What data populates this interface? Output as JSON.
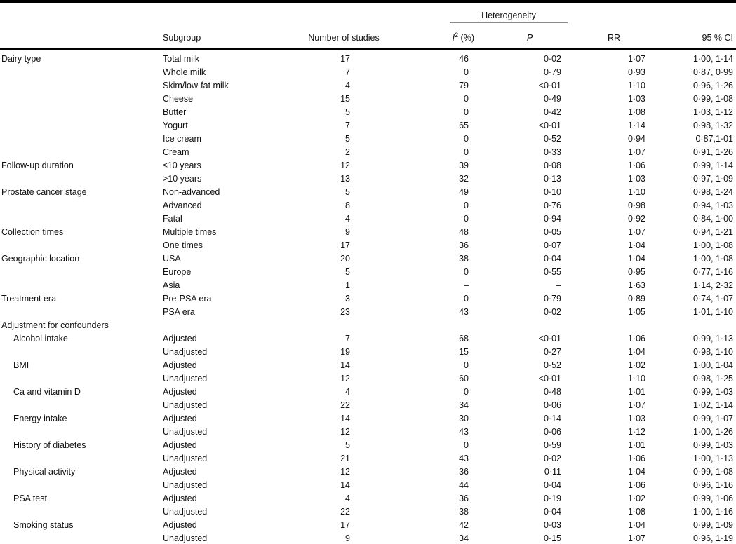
{
  "table": {
    "header": {
      "heterogeneity": "Heterogeneity",
      "col_subgroup": "Subgroup",
      "col_n": "Number of studies",
      "col_i2_base": "I",
      "col_i2_sup": "2",
      "col_i2_rest": " (%)",
      "col_p": "P",
      "col_rr": "RR",
      "col_ci": "95 % CI"
    },
    "rows": [
      {
        "category": "Dairy type",
        "indent": false,
        "subgroup": "Total milk",
        "n": "17",
        "i2": "46",
        "p": "0·02",
        "rr": "1·07",
        "ci": "1·00, 1·14"
      },
      {
        "category": "",
        "indent": false,
        "subgroup": "Whole milk",
        "n": "7",
        "i2": "0",
        "p": "0·79",
        "rr": "0·93",
        "ci": "0·87, 0·99"
      },
      {
        "category": "",
        "indent": false,
        "subgroup": "Skim/low-fat milk",
        "n": "4",
        "i2": "79",
        "p": "<0·01",
        "rr": "1·10",
        "ci": "0·96, 1·26"
      },
      {
        "category": "",
        "indent": false,
        "subgroup": "Cheese",
        "n": "15",
        "i2": "0",
        "p": "0·49",
        "rr": "1·03",
        "ci": "0·99, 1·08"
      },
      {
        "category": "",
        "indent": false,
        "subgroup": "Butter",
        "n": "5",
        "i2": "0",
        "p": "0·42",
        "rr": "1·08",
        "ci": "1·03, 1·12"
      },
      {
        "category": "",
        "indent": false,
        "subgroup": "Yogurt",
        "n": "7",
        "i2": "65",
        "p": "<0·01",
        "rr": "1·14",
        "ci": "0·98, 1·32"
      },
      {
        "category": "",
        "indent": false,
        "subgroup": "Ice cream",
        "n": "5",
        "i2": "0",
        "p": "0·52",
        "rr": "0·94",
        "ci": "0·87,1·01"
      },
      {
        "category": "",
        "indent": false,
        "subgroup": "Cream",
        "n": "2",
        "i2": "0",
        "p": "0·33",
        "rr": "1·07",
        "ci": "0·91, 1·26"
      },
      {
        "category": "Follow-up duration",
        "indent": false,
        "subgroup": "≤10 years",
        "n": "12",
        "i2": "39",
        "p": "0·08",
        "rr": "1·06",
        "ci": "0·99, 1·14"
      },
      {
        "category": "",
        "indent": false,
        "subgroup": ">10 years",
        "n": "13",
        "i2": "32",
        "p": "0·13",
        "rr": "1·03",
        "ci": "0·97, 1·09"
      },
      {
        "category": "Prostate cancer stage",
        "indent": false,
        "subgroup": "Non-advanced",
        "n": "5",
        "i2": "49",
        "p": "0·10",
        "rr": "1·10",
        "ci": "0·98, 1·24"
      },
      {
        "category": "",
        "indent": false,
        "subgroup": "Advanced",
        "n": "8",
        "i2": "0",
        "p": "0·76",
        "rr": "0·98",
        "ci": "0·94, 1·03"
      },
      {
        "category": "",
        "indent": false,
        "subgroup": "Fatal",
        "n": "4",
        "i2": "0",
        "p": "0·94",
        "rr": "0·92",
        "ci": "0·84, 1·00"
      },
      {
        "category": "Collection times",
        "indent": false,
        "subgroup": "Multiple times",
        "n": "9",
        "i2": "48",
        "p": "0·05",
        "rr": "1·07",
        "ci": "0·94, 1·21"
      },
      {
        "category": "",
        "indent": false,
        "subgroup": "One times",
        "n": "17",
        "i2": "36",
        "p": "0·07",
        "rr": "1·04",
        "ci": "1·00, 1·08"
      },
      {
        "category": "Geographic location",
        "indent": false,
        "subgroup": "USA",
        "n": "20",
        "i2": "38",
        "p": "0·04",
        "rr": "1·04",
        "ci": "1·00, 1·08"
      },
      {
        "category": "",
        "indent": false,
        "subgroup": "Europe",
        "n": "5",
        "i2": "0",
        "p": "0·55",
        "rr": "0·95",
        "ci": "0·77, 1·16"
      },
      {
        "category": "",
        "indent": false,
        "subgroup": "Asia",
        "n": "1",
        "i2": "–",
        "p": "–",
        "rr": "1·63",
        "ci": "1·14, 2·32"
      },
      {
        "category": "Treatment era",
        "indent": false,
        "subgroup": "Pre-PSA era",
        "n": "3",
        "i2": "0",
        "p": "0·79",
        "rr": "0·89",
        "ci": "0·74, 1·07"
      },
      {
        "category": "",
        "indent": false,
        "subgroup": "PSA era",
        "n": "23",
        "i2": "43",
        "p": "0·02",
        "rr": "1·05",
        "ci": "1·01, 1·10"
      },
      {
        "category": "Adjustment for confounders",
        "indent": false,
        "subgroup": "",
        "n": "",
        "i2": "",
        "p": "",
        "rr": "",
        "ci": ""
      },
      {
        "category": "Alcohol intake",
        "indent": true,
        "subgroup": "Adjusted",
        "n": "7",
        "i2": "68",
        "p": "<0·01",
        "rr": "1·06",
        "ci": "0·99, 1·13"
      },
      {
        "category": "",
        "indent": false,
        "subgroup": "Unadjusted",
        "n": "19",
        "i2": "15",
        "p": "0·27",
        "rr": "1·04",
        "ci": "0·98, 1·10"
      },
      {
        "category": "BMI",
        "indent": true,
        "subgroup": "Adjusted",
        "n": "14",
        "i2": "0",
        "p": "0·52",
        "rr": "1·02",
        "ci": "1·00, 1·04"
      },
      {
        "category": "",
        "indent": false,
        "subgroup": "Unadjusted",
        "n": "12",
        "i2": "60",
        "p": "<0·01",
        "rr": "1·10",
        "ci": "0·98, 1·25"
      },
      {
        "category": "Ca and vitamin D",
        "indent": true,
        "subgroup": "Adjusted",
        "n": "4",
        "i2": "0",
        "p": "0·48",
        "rr": "1·01",
        "ci": "0·99, 1·03"
      },
      {
        "category": "",
        "indent": false,
        "subgroup": "Unadjusted",
        "n": "22",
        "i2": "34",
        "p": "0·06",
        "rr": "1·07",
        "ci": "1·02, 1·14"
      },
      {
        "category": "Energy intake",
        "indent": true,
        "subgroup": "Adjusted",
        "n": "14",
        "i2": "30",
        "p": "0·14",
        "rr": "1·03",
        "ci": "0·99, 1·07"
      },
      {
        "category": "",
        "indent": false,
        "subgroup": "Unadjusted",
        "n": "12",
        "i2": "43",
        "p": "0·06",
        "rr": "1·12",
        "ci": "1·00, 1·26"
      },
      {
        "category": "History of diabetes",
        "indent": true,
        "subgroup": "Adjusted",
        "n": "5",
        "i2": "0",
        "p": "0·59",
        "rr": "1·01",
        "ci": "0·99, 1·03"
      },
      {
        "category": "",
        "indent": false,
        "subgroup": "Unadjusted",
        "n": "21",
        "i2": "43",
        "p": "0·02",
        "rr": "1·06",
        "ci": "1·00, 1·13"
      },
      {
        "category": "Physical activity",
        "indent": true,
        "subgroup": "Adjusted",
        "n": "12",
        "i2": "36",
        "p": "0·11",
        "rr": "1·04",
        "ci": "0·99, 1·08"
      },
      {
        "category": "",
        "indent": false,
        "subgroup": "Unadjusted",
        "n": "14",
        "i2": "44",
        "p": "0·04",
        "rr": "1·06",
        "ci": "0·96, 1·16"
      },
      {
        "category": "PSA test",
        "indent": true,
        "subgroup": "Adjusted",
        "n": "4",
        "i2": "36",
        "p": "0·19",
        "rr": "1·02",
        "ci": "0·99, 1·06"
      },
      {
        "category": "",
        "indent": false,
        "subgroup": "Unadjusted",
        "n": "22",
        "i2": "38",
        "p": "0·04",
        "rr": "1·08",
        "ci": "1·00, 1·16"
      },
      {
        "category": "Smoking status",
        "indent": true,
        "subgroup": "Adjusted",
        "n": "17",
        "i2": "42",
        "p": "0·03",
        "rr": "1·04",
        "ci": "0·99, 1·09"
      },
      {
        "category": "",
        "indent": false,
        "subgroup": "Unadjusted",
        "n": "9",
        "i2": "34",
        "p": "0·15",
        "rr": "1·07",
        "ci": "0·96, 1·19"
      }
    ]
  }
}
